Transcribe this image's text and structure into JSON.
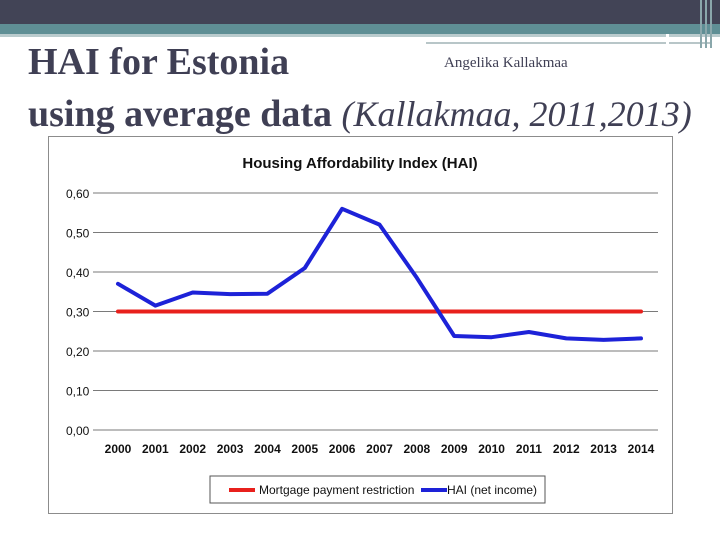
{
  "slide": {
    "title_line1": "HAI for Estonia",
    "title_line2_bold": "using average data ",
    "title_line2_cite": "(Kallakmaa, 2011,2013)",
    "author": "Angelika Kallakmaa"
  },
  "colors": {
    "header_dark": "#424456",
    "header_teal": "#5f8f95",
    "title_text": "#3f3f54",
    "restriction_line": "#e8201c",
    "hai_line": "#1d22d8"
  },
  "chart_data": {
    "type": "line",
    "title": "Housing Affordability Index (HAI)",
    "xlabel": "",
    "ylabel": "",
    "categories": [
      "2000",
      "2001",
      "2002",
      "2003",
      "2004",
      "2005",
      "2006",
      "2007",
      "2008",
      "2009",
      "2010",
      "2011",
      "2012",
      "2013",
      "2014"
    ],
    "ylim": [
      0,
      0.6
    ],
    "yticks": [
      "0,00",
      "0,10",
      "0,20",
      "0,30",
      "0,40",
      "0,50",
      "0,60"
    ],
    "ytick_values": [
      0,
      0.1,
      0.2,
      0.3,
      0.4,
      0.5,
      0.6
    ],
    "grid": true,
    "legend_position": "bottom",
    "series": [
      {
        "name": "Mortgage payment restriction",
        "color": "#e8201c",
        "values": [
          0.3,
          0.3,
          0.3,
          0.3,
          0.3,
          0.3,
          0.3,
          0.3,
          0.3,
          0.3,
          0.3,
          0.3,
          0.3,
          0.3,
          0.3
        ]
      },
      {
        "name": "HAI (net income)",
        "color": "#1d22d8",
        "values": [
          0.37,
          0.315,
          0.348,
          0.344,
          0.345,
          0.41,
          0.56,
          0.52,
          0.385,
          0.238,
          0.235,
          0.248,
          0.232,
          0.228,
          0.232
        ]
      }
    ]
  }
}
